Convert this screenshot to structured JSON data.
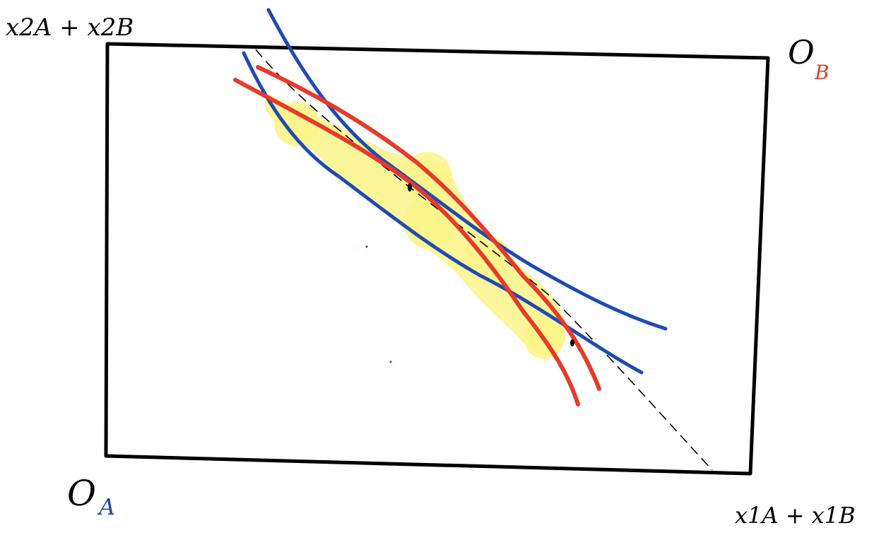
{
  "diagram": {
    "labels": {
      "y_axis_top_left": "x2A + x2B",
      "top_right_origin_letter": "O",
      "top_right_origin_sub": "B",
      "bottom_left_origin_letter": "O",
      "bottom_left_origin_sub": "A",
      "x_axis_bottom_right": "x1A + x1B"
    },
    "colors": {
      "box": "#000000",
      "contract_curve_dashed": "#000000",
      "agent_a_curves": "#1f4bb0",
      "agent_b_curves": "#e63a2a",
      "lens_highlight": "#fbf58a",
      "label_a": "#1f4bb0",
      "label_b": "#e63a2a"
    }
  }
}
